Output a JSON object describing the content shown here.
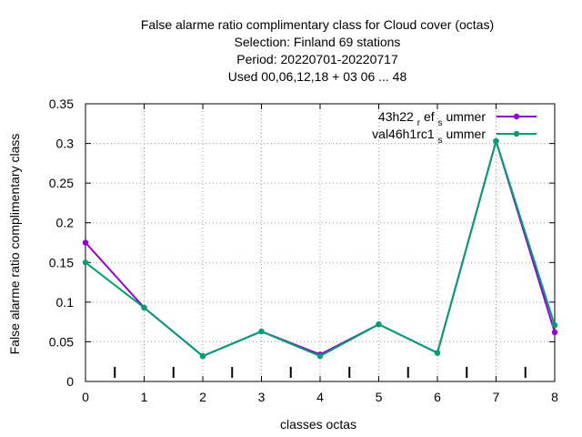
{
  "chart_data": {
    "type": "line",
    "title_lines": [
      "False alarme ratio complimentary class  for Cloud cover (octas)",
      "Selection: Finland     69 stations",
      "Period: 20220701-20220717",
      "Used  00,06,12,18  + 03 06 ... 48"
    ],
    "xlabel": "classes octas",
    "ylabel": "False alarme ratio complimentary class",
    "x": [
      0,
      1,
      2,
      3,
      4,
      5,
      6,
      7,
      8
    ],
    "xlim": [
      0,
      8
    ],
    "ylim": [
      0,
      0.35
    ],
    "x_ticks": [
      "0",
      "1",
      "2",
      "3",
      "4",
      "5",
      "6",
      "7",
      "8"
    ],
    "y_ticks": [
      "0",
      "0.05",
      "0.1",
      "0.15",
      "0.2",
      "0.25",
      "0.3",
      "0.35"
    ],
    "y_tick_values": [
      0,
      0.05,
      0.1,
      0.15,
      0.2,
      0.25,
      0.3,
      0.35
    ],
    "grid": true,
    "legend_position": "top-right",
    "series": [
      {
        "name": "43h22 ref summer",
        "legend_parts": [
          "43h22",
          "r",
          "ef",
          "s",
          "ummer"
        ],
        "color": "#9400d3",
        "values": [
          0.175,
          0.093,
          0.032,
          0.063,
          0.034,
          0.072,
          0.036,
          0.303,
          0.062
        ]
      },
      {
        "name": "val46h1rc1 summer",
        "legend_parts": [
          "val46h1rc1",
          "s",
          "ummer"
        ],
        "color": "#009e73",
        "values": [
          0.15,
          0.093,
          0.032,
          0.063,
          0.032,
          0.072,
          0.036,
          0.303,
          0.071
        ]
      }
    ],
    "class_boundary_marks": [
      0.5,
      1.5,
      2.5,
      3.5,
      4.5,
      5.5,
      6.5,
      7.5
    ]
  }
}
